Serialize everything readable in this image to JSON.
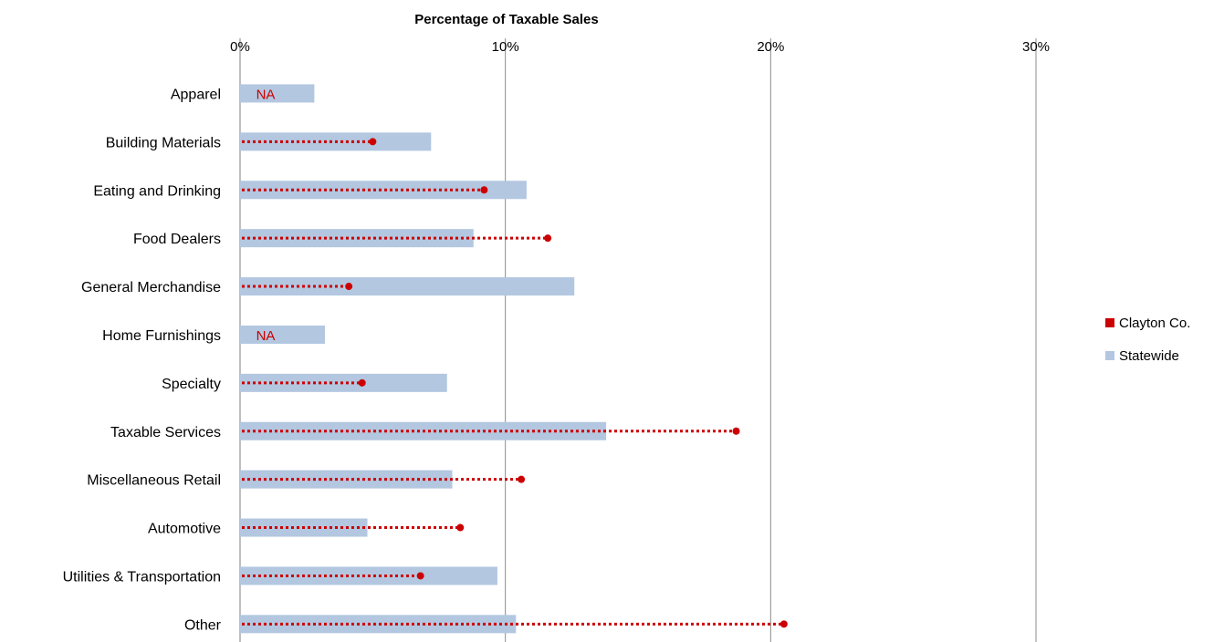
{
  "chart_data": {
    "type": "bar",
    "title": "Percentage of Taxable Sales",
    "x_axis_position": "top",
    "xlim": [
      0,
      0.3
    ],
    "x_ticks": [
      0,
      0.1,
      0.2,
      0.3
    ],
    "x_tick_labels": [
      "0%",
      "10%",
      "20%",
      "30%"
    ],
    "grid": true,
    "legend_position": "right",
    "categories": [
      "Apparel",
      "Building Materials",
      "Eating and Drinking",
      "Food Dealers",
      "General Merchandise",
      "Home Furnishings",
      "Specialty",
      "Taxable Services",
      "Miscellaneous Retail",
      "Automotive",
      "Utilities & Transportation",
      "Other"
    ],
    "series": [
      {
        "name": "Clayton Co.",
        "style": "dotted-line-with-dot",
        "color": "#cc0000",
        "values": [
          null,
          0.05,
          0.092,
          0.116,
          0.041,
          null,
          0.046,
          0.187,
          0.106,
          0.083,
          0.068,
          0.205
        ],
        "missing_label": "NA"
      },
      {
        "name": "Statewide",
        "style": "bar",
        "color": "#b3c7e0",
        "values": [
          0.028,
          0.072,
          0.108,
          0.088,
          0.126,
          0.032,
          0.078,
          0.138,
          0.08,
          0.048,
          0.097,
          0.104
        ]
      }
    ]
  }
}
